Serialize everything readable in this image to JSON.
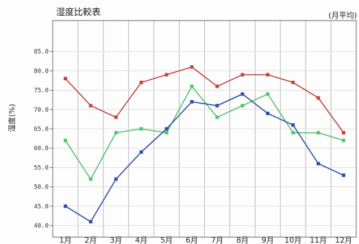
{
  "chart_data": {
    "type": "line",
    "title": "湿度比較表",
    "unit_note": "(月平均)",
    "ylabel": "湿度(%)",
    "xlabel": "",
    "categories": [
      "1月",
      "2月",
      "3月",
      "4月",
      "5月",
      "6月",
      "7月",
      "8月",
      "9月",
      "10月",
      "11月",
      "12月"
    ],
    "ylim": [
      37,
      93
    ],
    "yticks": [
      40,
      45,
      50,
      55,
      60,
      65,
      70,
      75,
      80,
      85
    ],
    "ytick_labels": [
      "40.0",
      "45.0",
      "50.0",
      "55.0",
      "60.0",
      "65.0",
      "70.0",
      "75.0",
      "80.0",
      "85.0"
    ],
    "series": [
      {
        "color": "#c0463c",
        "values": [
          78,
          71,
          68,
          77,
          79,
          81,
          76,
          79,
          79,
          77,
          73,
          64
        ]
      },
      {
        "color": "#52c46e",
        "values": [
          62,
          52,
          64,
          65,
          64,
          76,
          68,
          71,
          74,
          64,
          64,
          62
        ]
      },
      {
        "color": "#2f4fa6",
        "values": [
          45,
          41,
          52,
          59,
          65,
          72,
          71,
          74,
          69,
          66,
          56,
          53
        ]
      }
    ],
    "grid": true
  }
}
